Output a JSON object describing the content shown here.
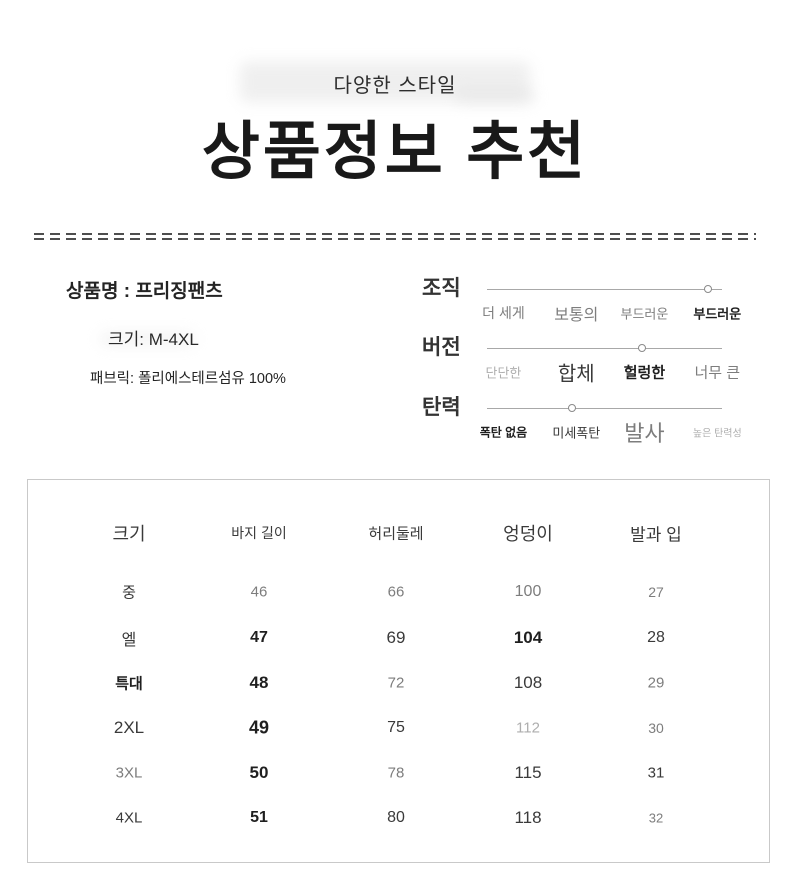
{
  "page": {
    "subtitle": "다양한 스타일",
    "title": "상품정보 추천"
  },
  "product": {
    "name": "상품명 : 프리징팬츠",
    "size": "크기: M-4XL",
    "fabric": "패브릭: 폴리에스테르섬유 100%"
  },
  "sliders": [
    {
      "label": "조직",
      "value_percent": 94,
      "ticks": [
        {
          "text": "더 세게",
          "style": "g14"
        },
        {
          "text": "보통의",
          "style": "g16"
        },
        {
          "text": "부드러운",
          "style": "g13"
        },
        {
          "text": "부드러운",
          "style": "b13"
        }
      ]
    },
    {
      "label": "버전",
      "value_percent": 66,
      "ticks": [
        {
          "text": "단단한",
          "style": "l13"
        },
        {
          "text": "합체",
          "style": "d20"
        },
        {
          "text": "헐렁한",
          "style": "b15"
        },
        {
          "text": "너무 큰",
          "style": "g15"
        }
      ]
    },
    {
      "label": "탄력",
      "value_percent": 36,
      "ticks": [
        {
          "text": "폭탄 없음",
          "style": "b12"
        },
        {
          "text": "미세폭탄",
          "style": "d13"
        },
        {
          "text": "발사",
          "style": "g22"
        },
        {
          "text": "높은 탄력성",
          "style": "l10"
        }
      ]
    }
  ],
  "size_table": {
    "headers": [
      {
        "text": "크기",
        "style": "d18"
      },
      {
        "text": "바지 길이",
        "style": "d14"
      },
      {
        "text": "허리둘레",
        "style": "d15"
      },
      {
        "text": "엉덩이",
        "style": "d18"
      },
      {
        "text": "발과 입",
        "style": "d17"
      }
    ],
    "rows": [
      {
        "cells": [
          {
            "text": "중",
            "style": "d15"
          },
          {
            "text": "46",
            "style": "g15"
          },
          {
            "text": "66",
            "style": "g15"
          },
          {
            "text": "100",
            "style": "g16"
          },
          {
            "text": "27",
            "style": "g14"
          }
        ]
      },
      {
        "cells": [
          {
            "text": "엘",
            "style": "d16"
          },
          {
            "text": "47",
            "style": "b16"
          },
          {
            "text": "69",
            "style": "d17"
          },
          {
            "text": "104",
            "style": "b17"
          },
          {
            "text": "28",
            "style": "d16"
          }
        ]
      },
      {
        "cells": [
          {
            "text": "특대",
            "style": "b15"
          },
          {
            "text": "48",
            "style": "b17"
          },
          {
            "text": "72",
            "style": "g15"
          },
          {
            "text": "108",
            "style": "d17"
          },
          {
            "text": "29",
            "style": "g15"
          }
        ]
      },
      {
        "cells": [
          {
            "text": "2XL",
            "style": "d17"
          },
          {
            "text": "49",
            "style": "b18"
          },
          {
            "text": "75",
            "style": "d16"
          },
          {
            "text": "112",
            "style": "l15"
          },
          {
            "text": "30",
            "style": "g14"
          }
        ]
      },
      {
        "cells": [
          {
            "text": "3XL",
            "style": "g15"
          },
          {
            "text": "50",
            "style": "b17"
          },
          {
            "text": "78",
            "style": "g15"
          },
          {
            "text": "115",
            "style": "d17"
          },
          {
            "text": "31",
            "style": "d15"
          }
        ]
      },
      {
        "cells": [
          {
            "text": "4XL",
            "style": "d15"
          },
          {
            "text": "51",
            "style": "b16"
          },
          {
            "text": "80",
            "style": "d16"
          },
          {
            "text": "118",
            "style": "d17"
          },
          {
            "text": "32",
            "style": "g13"
          }
        ]
      }
    ]
  },
  "colors": {
    "title_text": "#191919",
    "divider_dash": "#4e4e4e",
    "slider_line": "#a8a8a8",
    "table_border": "#c9c9c9",
    "muted_text": "#7d7d7d"
  }
}
